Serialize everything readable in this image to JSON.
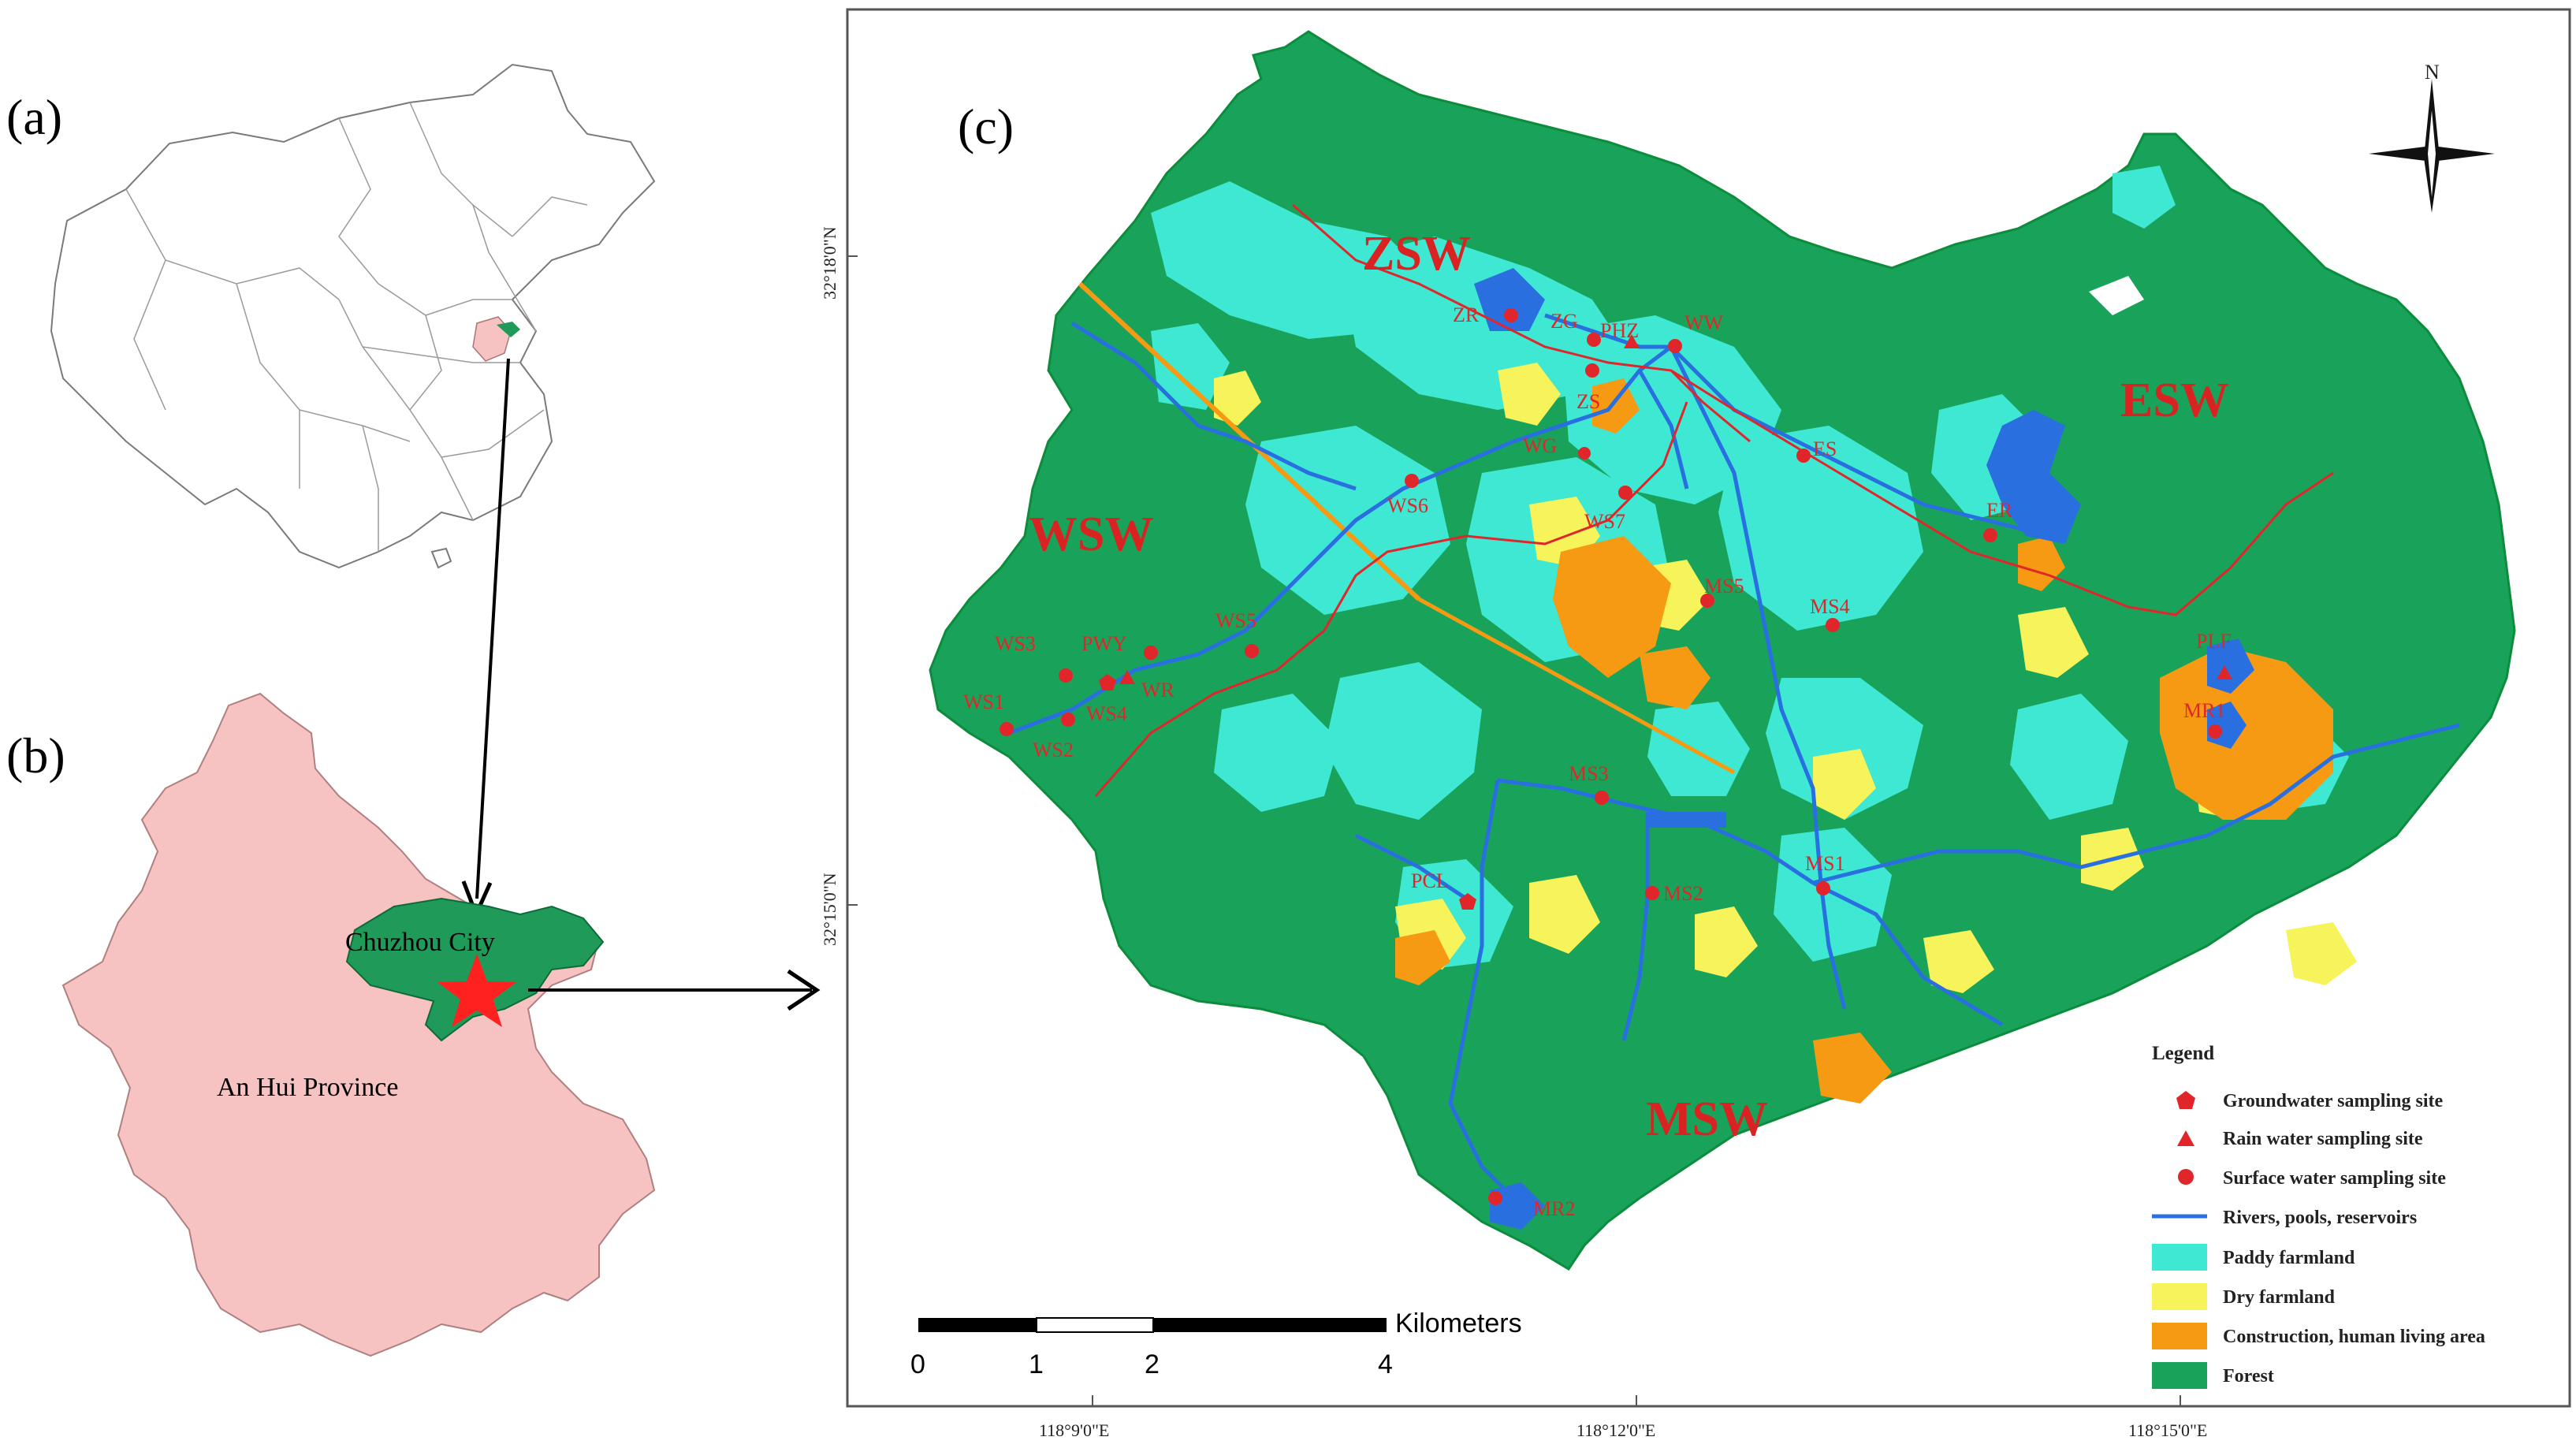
{
  "panels": {
    "a": "(a)",
    "b": "(b)",
    "c": "(c)"
  },
  "panel_b": {
    "city_label": "Chuzhou City",
    "province_label": "An Hui Province"
  },
  "panel_c": {
    "north_label": "N",
    "zones": [
      "ZSW",
      "ESW",
      "WSW",
      "MSW"
    ],
    "sites": [
      "ZR",
      "ZG",
      "PHZ",
      "WW",
      "ZS",
      "WG",
      "ES",
      "WS6",
      "WS7",
      "ER",
      "MS5",
      "MS4",
      "WS3",
      "PWY",
      "WS5",
      "WR",
      "WS1",
      "WS4",
      "WS2",
      "MS3",
      "PLF",
      "MR1",
      "PCL",
      "MS2",
      "MS1",
      "MR2"
    ],
    "axis_left": [
      "32°18'0\"N",
      "32°15'0\"N"
    ],
    "axis_bottom": [
      "118°9'0\"E",
      "118°12'0\"E",
      "118°15'0\"E"
    ],
    "scale": {
      "ticks": [
        "0",
        "1",
        "2",
        "4"
      ],
      "unit": "Kilometers"
    },
    "legend": {
      "title": "Legend",
      "items": [
        "Groundwater sampling site",
        "Rain water sampling site",
        "Surface water sampling site",
        "Rivers, pools, reservoirs",
        "Paddy farmland",
        "Dry farmland",
        "Construction, human living area",
        "Forest"
      ]
    }
  },
  "colors": {
    "forest": "#19a35a",
    "paddy": "#3ee8d2",
    "dry": "#f6f45a",
    "construction": "#f59a12",
    "water": "#2a6fe0",
    "site": "#e0262a",
    "province": "#f6c2c2",
    "city": "#1f9a58"
  }
}
